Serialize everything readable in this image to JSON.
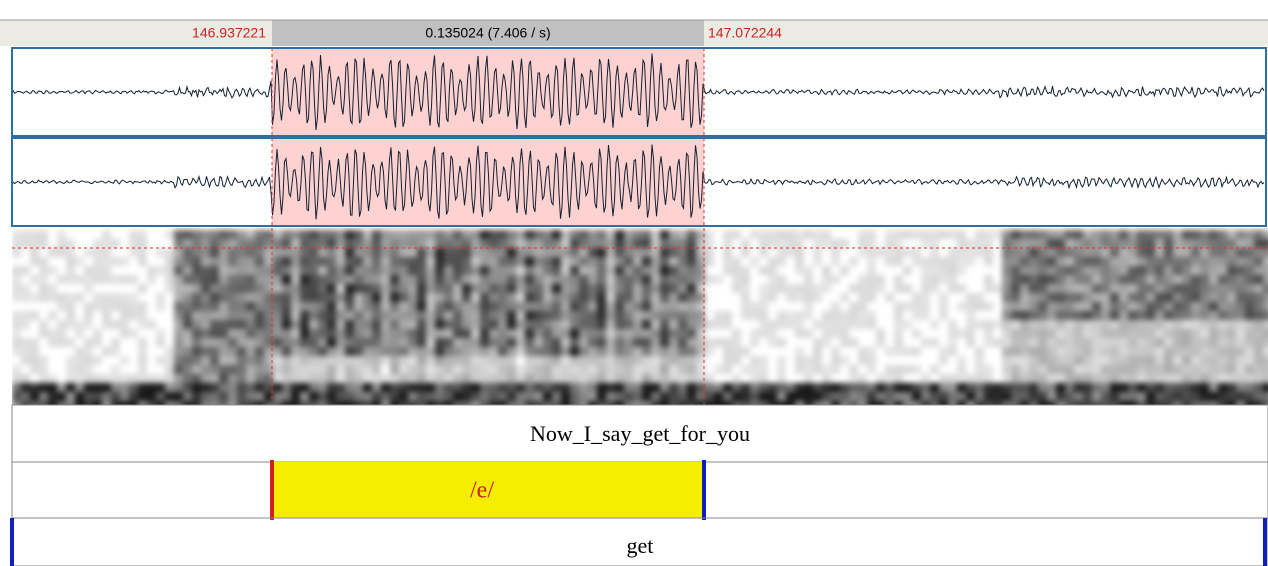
{
  "header": {
    "start_time": "146.937221",
    "selection_duration": "0.135024 (7.406 / s)",
    "end_time": "147.072244"
  },
  "tiers": [
    {
      "label": "Now_I_say_get_for_you"
    },
    {
      "label": "/e/"
    },
    {
      "label": "get"
    }
  ]
}
